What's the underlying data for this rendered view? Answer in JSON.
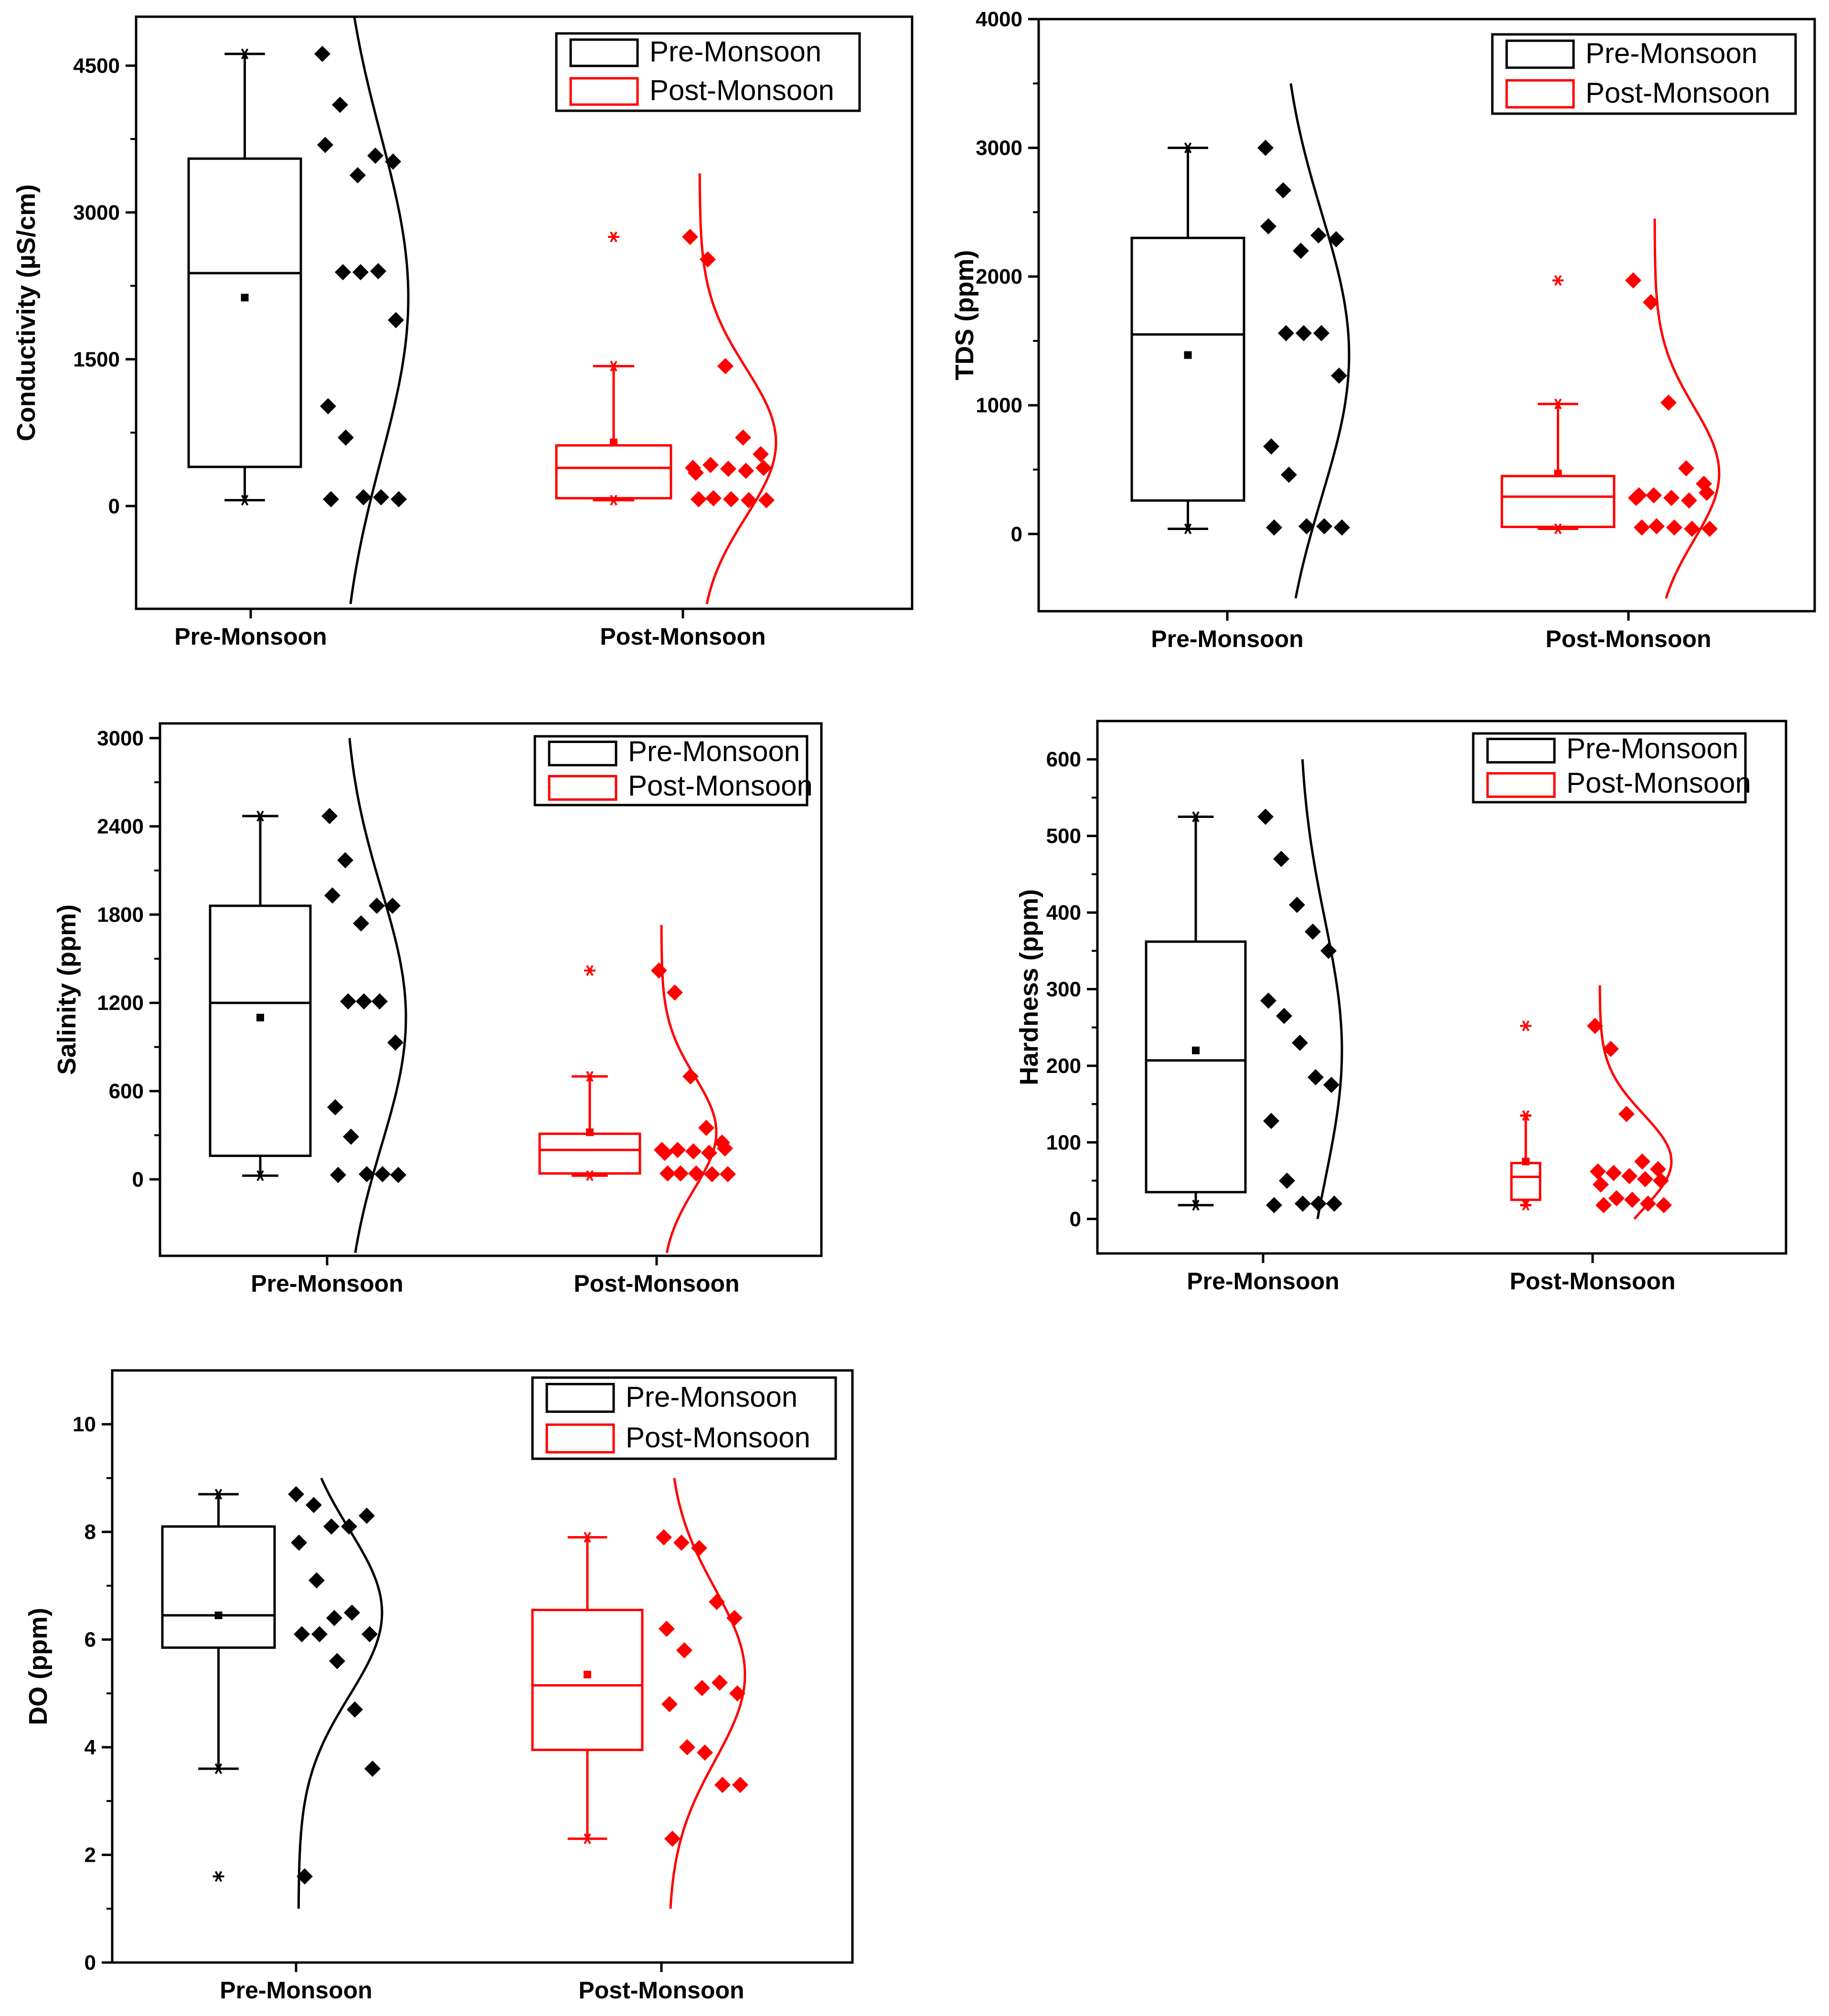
{
  "chart_data": [
    {
      "type": "box",
      "ylabel": "Conductivity (µS/cm)",
      "ylim": [
        -1050,
        5000
      ],
      "yticks": [
        0,
        1500,
        3000,
        4500
      ],
      "categories": [
        "Pre-Monsoon",
        "Post-Monsoon"
      ],
      "legend": {
        "position": "top-right",
        "entries": [
          "Pre-Monsoon",
          "Post-Monsoon"
        ]
      },
      "series": [
        {
          "name": "Pre-Monsoon",
          "color": "#000000",
          "box": {
            "q1": 400,
            "median": 2380,
            "q3": 3550,
            "mean": 2130,
            "whisker_low": 60,
            "whisker_high": 4620
          },
          "points": [
            4620,
            4100,
            3380,
            3580,
            3520,
            3690,
            2390,
            2390,
            2400,
            1900,
            1020,
            700,
            90,
            90,
            70,
            70
          ],
          "curve": {
            "mean": 2130,
            "sd": 1650,
            "ymin": -1000,
            "ymax": 5000
          }
        },
        {
          "name": "Post-Monsoon",
          "color": "#ff0000",
          "box": {
            "q1": 80,
            "median": 390,
            "q3": 620,
            "mean": 650,
            "whisker_low": 60,
            "whisker_high": 1430
          },
          "points": [
            2750,
            2520,
            1430,
            700,
            530,
            390,
            420,
            380,
            360,
            390,
            340,
            80,
            70,
            60,
            60,
            70
          ],
          "outliers": [
            2750
          ],
          "curve": {
            "mean": 650,
            "sd": 760,
            "ymin": -1000,
            "ymax": 3400
          }
        }
      ]
    },
    {
      "type": "box",
      "ylabel": "TDS (ppm)",
      "ylim": [
        -600,
        4000
      ],
      "yticks": [
        0,
        1000,
        2000,
        3000,
        4000
      ],
      "categories": [
        "Pre-Monsoon",
        "Post-Monsoon"
      ],
      "legend": {
        "position": "top-right",
        "entries": [
          "Pre-Monsoon",
          "Post-Monsoon"
        ]
      },
      "series": [
        {
          "name": "Pre-Monsoon",
          "color": "#000000",
          "box": {
            "q1": 260,
            "median": 1550,
            "q3": 2300,
            "mean": 1390,
            "whisker_low": 40,
            "whisker_high": 3000
          },
          "points": [
            3000,
            2670,
            2200,
            2320,
            2290,
            2390,
            1560,
            1560,
            1560,
            1230,
            680,
            460,
            60,
            60,
            50,
            50
          ],
          "curve": {
            "mean": 1390,
            "sd": 1100,
            "ymin": -500,
            "ymax": 3500
          }
        },
        {
          "name": "Post-Monsoon",
          "color": "#ff0000",
          "box": {
            "q1": 55,
            "median": 290,
            "q3": 450,
            "mean": 470,
            "whisker_low": 40,
            "whisker_high": 1010
          },
          "points": [
            1970,
            1800,
            1020,
            510,
            390,
            280,
            300,
            280,
            260,
            320,
            300,
            60,
            50,
            40,
            40,
            50
          ],
          "outliers": [
            1970
          ],
          "curve": {
            "mean": 470,
            "sd": 520,
            "ymin": -500,
            "ymax": 2450
          }
        }
      ]
    },
    {
      "type": "box",
      "ylabel": "Salinity (ppm)",
      "ylim": [
        -520,
        3100
      ],
      "yticks": [
        0,
        600,
        1200,
        1800,
        2400,
        3000
      ],
      "categories": [
        "Pre-Monsoon",
        "Post-Monsoon"
      ],
      "legend": {
        "position": "top-right",
        "entries": [
          "Pre-Monsoon",
          "Post-Monsoon"
        ]
      },
      "series": [
        {
          "name": "Pre-Monsoon",
          "color": "#000000",
          "box": {
            "q1": 160,
            "median": 1200,
            "q3": 1860,
            "mean": 1100,
            "whisker_low": 25,
            "whisker_high": 2470
          },
          "points": [
            2470,
            2170,
            1740,
            1860,
            1860,
            1930,
            1210,
            1210,
            1210,
            930,
            490,
            290,
            35,
            35,
            30,
            30
          ],
          "curve": {
            "mean": 1100,
            "sd": 870,
            "ymin": -500,
            "ymax": 3000
          }
        },
        {
          "name": "Post-Monsoon",
          "color": "#ff0000",
          "box": {
            "q1": 40,
            "median": 200,
            "q3": 310,
            "mean": 320,
            "whisker_low": 25,
            "whisker_high": 700
          },
          "points": [
            1420,
            1270,
            700,
            350,
            250,
            200,
            200,
            190,
            180,
            210,
            180,
            40,
            40,
            35,
            35,
            40
          ],
          "outliers": [
            1420
          ],
          "curve": {
            "mean": 320,
            "sd": 380,
            "ymin": -500,
            "ymax": 1730
          }
        }
      ]
    },
    {
      "type": "box",
      "ylabel": "Hardness (ppm)",
      "ylim": [
        -45,
        650
      ],
      "yticks": [
        0,
        100,
        200,
        300,
        400,
        500,
        600
      ],
      "categories": [
        "Pre-Monsoon",
        "Post-Monsoon"
      ],
      "legend": {
        "position": "top-right",
        "entries": [
          "Pre-Monsoon",
          "Post-Monsoon"
        ]
      },
      "series": [
        {
          "name": "Pre-Monsoon",
          "color": "#000000",
          "box": {
            "q1": 35,
            "median": 207,
            "q3": 362,
            "mean": 220,
            "whisker_low": 18,
            "whisker_high": 525
          },
          "points": [
            525,
            470,
            410,
            375,
            350,
            285,
            265,
            230,
            185,
            175,
            128,
            50,
            20,
            20,
            20,
            18
          ],
          "curve": {
            "mean": 220,
            "sd": 170,
            "ymin": 0,
            "ymax": 600
          }
        },
        {
          "name": "Post-Monsoon",
          "color": "#ff0000",
          "box": {
            "q1": 25,
            "median": 55,
            "q3": 73,
            "mean": 75,
            "whisker_low": 18,
            "whisker_high": 135
          },
          "points": [
            252,
            222,
            137,
            75,
            65,
            62,
            60,
            56,
            52,
            50,
            45,
            27,
            25,
            20,
            18,
            18
          ],
          "outliers": [
            252
          ],
          "curve": {
            "mean": 75,
            "sd": 62,
            "ymin": 0,
            "ymax": 305
          }
        }
      ]
    },
    {
      "type": "box",
      "ylabel": "DO (ppm)",
      "ylim": [
        0,
        11
      ],
      "yticks": [
        0,
        2,
        4,
        6,
        8,
        10
      ],
      "categories": [
        "Pre-Monsoon",
        "Post-Monsoon"
      ],
      "legend": {
        "position": "top-right",
        "entries": [
          "Pre-Monsoon",
          "Post-Monsoon"
        ]
      },
      "series": [
        {
          "name": "Pre-Monsoon",
          "color": "#000000",
          "box": {
            "q1": 5.85,
            "median": 6.45,
            "q3": 8.1,
            "mean": 6.45,
            "whisker_low": 3.6,
            "whisker_high": 8.7
          },
          "points": [
            8.7,
            8.5,
            8.1,
            8.1,
            8.3,
            7.8,
            7.1,
            6.4,
            6.5,
            6.1,
            6.1,
            6.1,
            5.6,
            4.7,
            3.6,
            1.6
          ],
          "outliers": [
            1.6
          ],
          "curve": {
            "mean": 6.5,
            "sd": 1.55,
            "ymin": 1.0,
            "ymax": 9.0
          }
        },
        {
          "name": "Post-Monsoon",
          "color": "#ff0000",
          "box": {
            "q1": 3.95,
            "median": 5.15,
            "q3": 6.55,
            "mean": 5.35,
            "whisker_low": 2.3,
            "whisker_high": 7.9
          },
          "points": [
            7.9,
            7.8,
            7.7,
            6.7,
            6.4,
            6.2,
            5.8,
            5.1,
            5.2,
            5.0,
            4.8,
            4.0,
            3.9,
            3.3,
            3.3,
            2.3
          ],
          "curve": {
            "mean": 5.35,
            "sd": 1.6,
            "ymin": 1.0,
            "ymax": 9.0
          }
        }
      ]
    }
  ]
}
